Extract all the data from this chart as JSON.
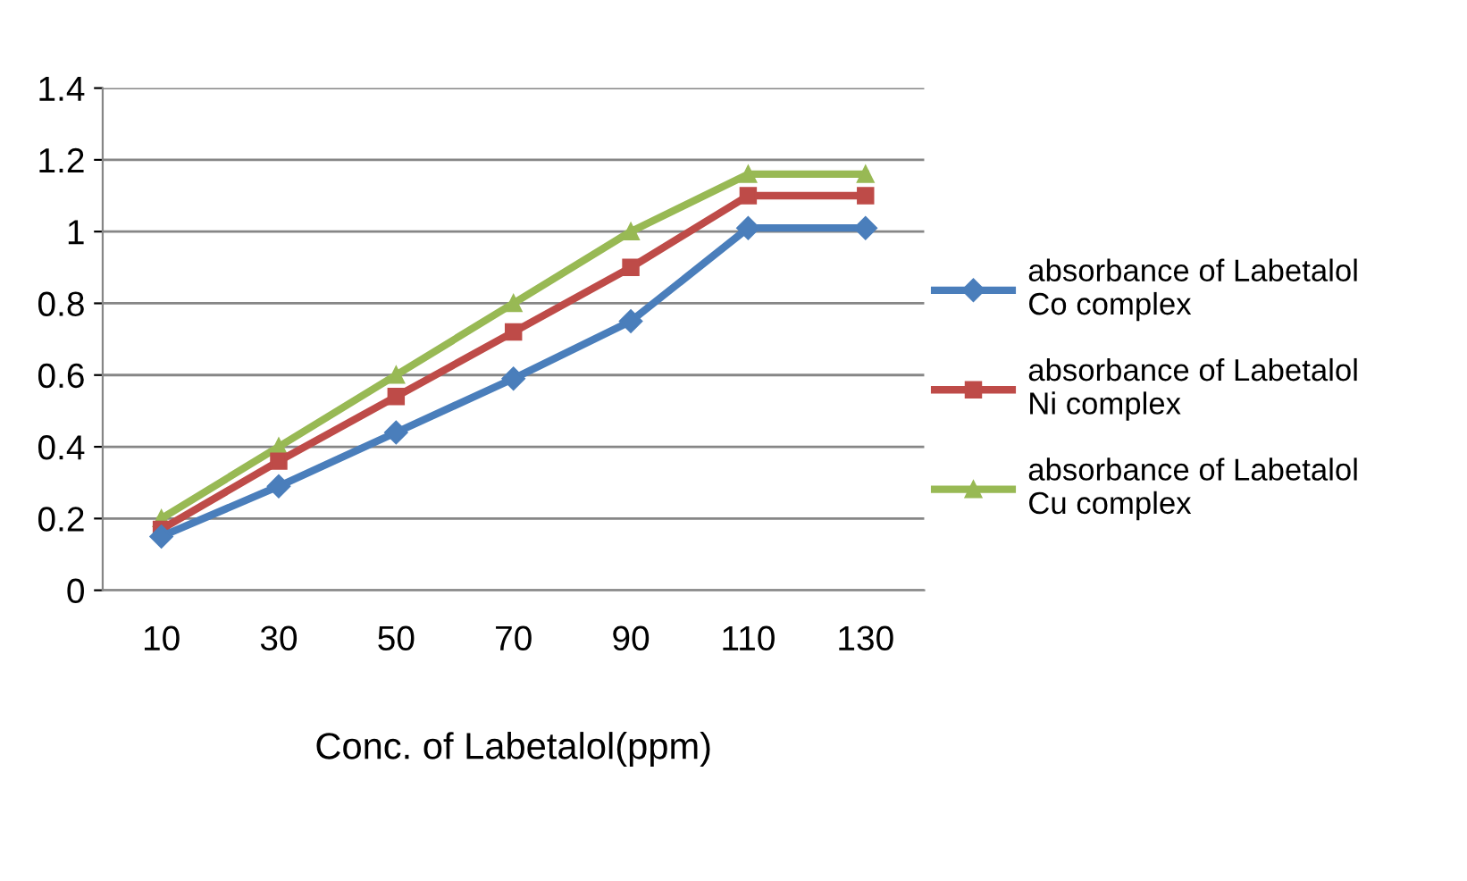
{
  "chart_data": {
    "type": "line",
    "xlabel": "Conc. of Labetalol(ppm)",
    "categories": [
      "10",
      "30",
      "50",
      "70",
      "90",
      "110",
      "130"
    ],
    "series": [
      {
        "name": "absorbance of Labetalol\nCo complex",
        "color": "#4a7ebb",
        "marker": "diamond",
        "values": [
          0.15,
          0.29,
          0.44,
          0.59,
          0.75,
          1.01,
          1.01
        ]
      },
      {
        "name": "absorbance of Labetalol\nNi complex",
        "color": "#be4b48",
        "marker": "square",
        "values": [
          0.17,
          0.36,
          0.54,
          0.72,
          0.9,
          1.1,
          1.1
        ]
      },
      {
        "name": "absorbance of Labetalol\nCu complex",
        "color": "#98b954",
        "marker": "triangle",
        "values": [
          0.2,
          0.4,
          0.6,
          0.8,
          1.0,
          1.16,
          1.16
        ]
      }
    ],
    "ylim": [
      0,
      1.4
    ],
    "yticks": [
      0,
      0.2,
      0.4,
      0.6,
      0.8,
      1,
      1.2,
      1.4
    ],
    "grid": "y",
    "legend": "right",
    "line_style": "solid"
  }
}
